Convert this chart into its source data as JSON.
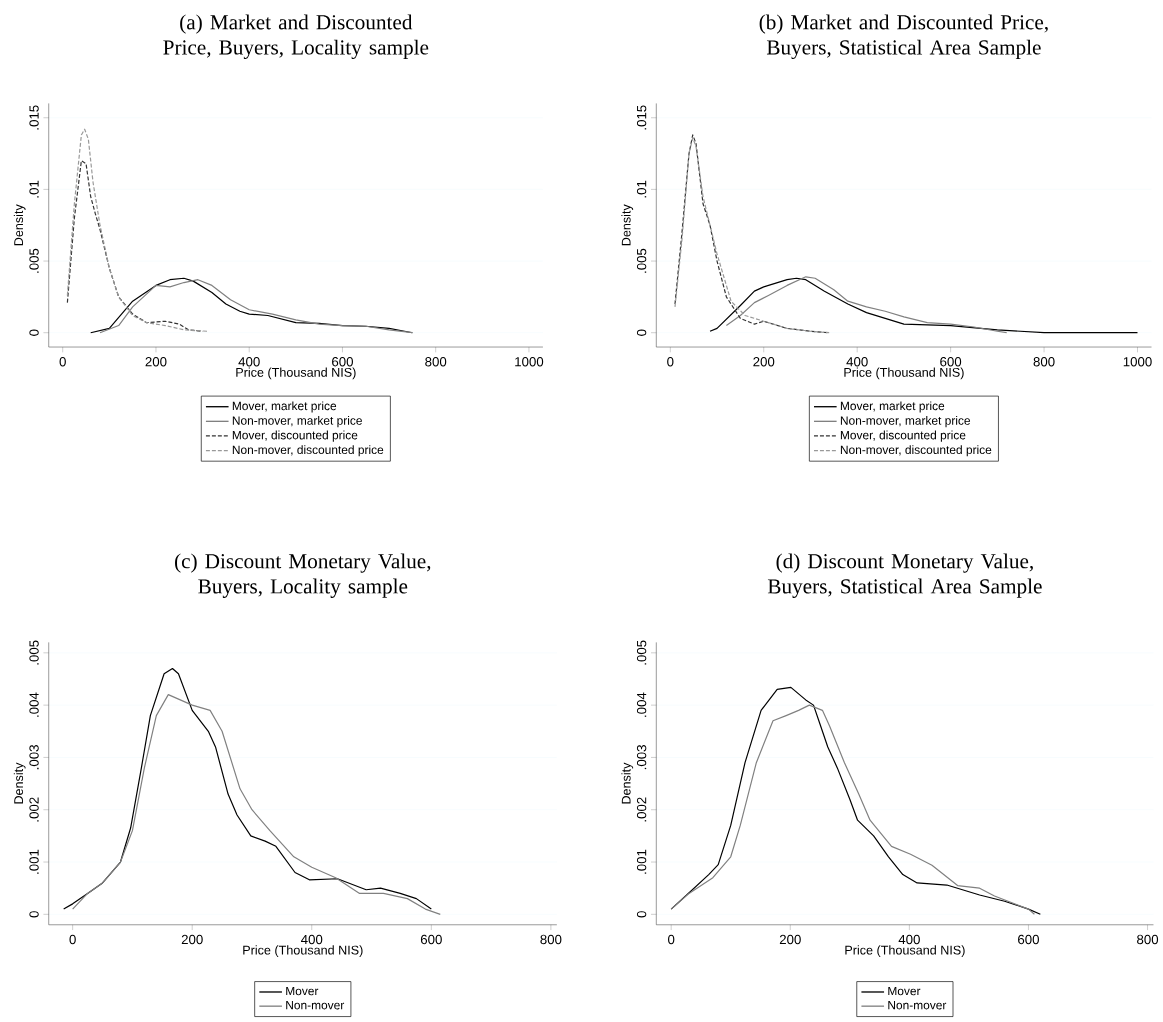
{
  "chart_data": [
    {
      "type": "line",
      "title": "(a) Market and Discounted Price, Buyers, Locality sample",
      "xlabel": "Price (Thousand NIS)",
      "ylabel": "Density",
      "xlim": [
        -30,
        1030
      ],
      "ylim": [
        -0.001,
        0.016
      ],
      "xticks": [
        0,
        200,
        400,
        600,
        800,
        1000
      ],
      "yticks": [
        0,
        {
          "value": 0.005,
          "label": ".005"
        },
        {
          "value": 0.01,
          "label": ".01"
        },
        {
          "value": 0.015,
          "label": ".015"
        }
      ],
      "grid": "y",
      "legend": "bottom",
      "series": [
        {
          "name": "Mover, market price",
          "color": "#000000",
          "line_style": "solid",
          "x": [
            60,
            100,
            150,
            200,
            230,
            260,
            280,
            320,
            350,
            380,
            400,
            440,
            500,
            550,
            600,
            650,
            700,
            750
          ],
          "values": [
            0,
            0.0003,
            0.0022,
            0.0033,
            0.0037,
            0.0038,
            0.0036,
            0.0028,
            0.002,
            0.0015,
            0.0013,
            0.0012,
            0.0007,
            0.00065,
            0.0005,
            0.00045,
            0.0003,
            0
          ]
        },
        {
          "name": "Non-mover, market price",
          "color": "#808080",
          "line_style": "solid",
          "x": [
            80,
            120,
            150,
            200,
            230,
            260,
            290,
            320,
            360,
            400,
            450,
            500,
            550,
            600,
            650,
            700,
            750
          ],
          "values": [
            0,
            0.0005,
            0.0018,
            0.0033,
            0.0032,
            0.0035,
            0.0037,
            0.0033,
            0.0023,
            0.0016,
            0.0013,
            0.0009,
            0.0006,
            0.0005,
            0.00045,
            0.0002,
            0
          ]
        },
        {
          "name": "Mover, discounted price",
          "color": "#333333",
          "line_style": "dashed",
          "x": [
            10,
            25,
            40,
            50,
            60,
            70,
            80,
            100,
            120,
            150,
            180,
            220,
            250,
            270,
            300
          ],
          "values": [
            0.0021,
            0.008,
            0.012,
            0.0118,
            0.0095,
            0.0083,
            0.0072,
            0.0045,
            0.0025,
            0.0013,
            0.0007,
            0.0008,
            0.0006,
            0.0002,
            0.0001
          ]
        },
        {
          "name": "Non-mover, discounted price",
          "color": "#999999",
          "line_style": "dashed",
          "x": [
            10,
            25,
            40,
            47,
            55,
            65,
            80,
            100,
            120,
            150,
            180,
            220,
            260,
            310
          ],
          "values": [
            0.0026,
            0.009,
            0.0138,
            0.0142,
            0.0135,
            0.0105,
            0.0075,
            0.0045,
            0.0025,
            0.0012,
            0.0007,
            0.0005,
            0.0002,
            0.0001
          ]
        }
      ]
    },
    {
      "type": "line",
      "title": "(b) Market and Discounted Price, Buyers, Statistical Area Sample",
      "xlabel": "Price (Thousand NIS)",
      "ylabel": "Density",
      "xlim": [
        -30,
        1030
      ],
      "ylim": [
        -0.001,
        0.016
      ],
      "xticks": [
        0,
        200,
        400,
        600,
        800,
        1000
      ],
      "yticks": [
        0,
        {
          "value": 0.005,
          "label": ".005"
        },
        {
          "value": 0.01,
          "label": ".01"
        },
        {
          "value": 0.015,
          "label": ".015"
        }
      ],
      "grid": "y",
      "legend": "bottom",
      "series": [
        {
          "name": "Mover, market price",
          "color": "#000000",
          "line_style": "solid",
          "x": [
            85,
            100,
            150,
            180,
            200,
            250,
            270,
            290,
            330,
            380,
            420,
            460,
            500,
            600,
            700,
            800,
            900,
            1000
          ],
          "values": [
            0.0001,
            0.0003,
            0.0019,
            0.0029,
            0.0032,
            0.0037,
            0.0038,
            0.0037,
            0.0029,
            0.002,
            0.0014,
            0.001,
            0.0006,
            0.0005,
            0.0002,
            0,
            0,
            0
          ]
        },
        {
          "name": "Non-mover, market price",
          "color": "#808080",
          "line_style": "solid",
          "x": [
            120,
            150,
            180,
            210,
            250,
            290,
            310,
            350,
            380,
            420,
            460,
            500,
            550,
            600,
            650,
            700,
            720
          ],
          "values": [
            0.0005,
            0.0012,
            0.0021,
            0.0026,
            0.0033,
            0.0039,
            0.0038,
            0.003,
            0.0022,
            0.0018,
            0.0015,
            0.0011,
            0.0007,
            0.0006,
            0.0004,
            0.0001,
            0
          ]
        },
        {
          "name": "Mover, discounted price",
          "color": "#333333",
          "line_style": "dashed",
          "x": [
            10,
            25,
            40,
            48,
            55,
            70,
            85,
            100,
            120,
            150,
            180,
            200,
            250,
            300,
            340
          ],
          "values": [
            0.002,
            0.007,
            0.0125,
            0.0138,
            0.0132,
            0.009,
            0.0075,
            0.005,
            0.0025,
            0.001,
            0.0006,
            0.0008,
            0.0003,
            0.0001,
            0
          ]
        },
        {
          "name": "Non-mover, discounted price",
          "color": "#999999",
          "line_style": "dashed",
          "x": [
            10,
            25,
            40,
            48,
            55,
            70,
            85,
            100,
            130,
            160,
            200,
            250,
            300,
            340
          ],
          "values": [
            0.0018,
            0.0065,
            0.0125,
            0.0136,
            0.013,
            0.0095,
            0.0075,
            0.0055,
            0.0022,
            0.0012,
            0.0008,
            0.0003,
            0.0001,
            0
          ]
        }
      ]
    },
    {
      "type": "line",
      "title": "(c) Discount Monetary Value, Buyers, Locality sample",
      "xlabel": "Price (Thousand NIS)",
      "ylabel": "Density",
      "xlim": [
        -40,
        810
      ],
      "ylim": [
        -0.0002,
        0.0052
      ],
      "xticks": [
        0,
        200,
        400,
        600,
        800
      ],
      "yticks": [
        0,
        {
          "value": 0.001,
          "label": ".001"
        },
        {
          "value": 0.002,
          "label": ".002"
        },
        {
          "value": 0.003,
          "label": ".003"
        },
        {
          "value": 0.004,
          "label": ".004"
        },
        {
          "value": 0.005,
          "label": ".005"
        }
      ],
      "grid": "y",
      "legend": "bottom",
      "series": [
        {
          "name": "Mover",
          "color": "#000000",
          "line_style": "solid",
          "x": [
            -15,
            0,
            25,
            50,
            80,
            97,
            115,
            130,
            153,
            167,
            177,
            200,
            227,
            239,
            260,
            275,
            298,
            322,
            340,
            372,
            396,
            443,
            491,
            515,
            548,
            575,
            600
          ],
          "values": [
            0.0001,
            0.0002,
            0.0004,
            0.0006,
            0.001,
            0.00165,
            0.0028,
            0.0038,
            0.0046,
            0.0047,
            0.0046,
            0.0039,
            0.0035,
            0.0032,
            0.0023,
            0.0019,
            0.0015,
            0.0014,
            0.0013,
            0.0008,
            0.00066,
            0.00068,
            0.00047,
            0.0005,
            0.0004,
            0.0003,
            0.0001
          ]
        },
        {
          "name": "Non-mover",
          "color": "#808080",
          "line_style": "solid",
          "x": [
            0,
            25,
            50,
            80,
            100,
            120,
            140,
            160,
            180,
            200,
            230,
            250,
            280,
            300,
            330,
            370,
            400,
            440,
            480,
            520,
            560,
            590,
            615
          ],
          "values": [
            0.0001,
            0.0004,
            0.0006,
            0.001,
            0.0016,
            0.0028,
            0.0038,
            0.0042,
            0.0041,
            0.004,
            0.0039,
            0.0035,
            0.0024,
            0.002,
            0.0016,
            0.0011,
            0.0009,
            0.0007,
            0.0004,
            0.0004,
            0.0003,
            0.0001,
            0
          ]
        }
      ]
    },
    {
      "type": "line",
      "title": "(d) Discount Monetary Value, Buyers, Statistical Area Sample",
      "xlabel": "Price (Thousand NIS)",
      "ylabel": "Density",
      "xlim": [
        -25,
        810
      ],
      "ylim": [
        -0.0002,
        0.0052
      ],
      "xticks": [
        0,
        200,
        400,
        600,
        800
      ],
      "yticks": [
        0,
        {
          "value": 0.001,
          "label": ".001"
        },
        {
          "value": 0.002,
          "label": ".002"
        },
        {
          "value": 0.003,
          "label": ".003"
        },
        {
          "value": 0.004,
          "label": ".004"
        },
        {
          "value": 0.005,
          "label": ".005"
        }
      ],
      "grid": "y",
      "legend": "bottom",
      "series": [
        {
          "name": "Mover",
          "color": "#000000",
          "line_style": "solid",
          "x": [
            0,
            26,
            63,
            79,
            100,
            124,
            151,
            178,
            201,
            226,
            239,
            251,
            263,
            279,
            300,
            313,
            340,
            365,
            389,
            413,
            463,
            518,
            560,
            600,
            620
          ],
          "values": [
            0.0001,
            0.00037,
            0.00076,
            0.00095,
            0.0017,
            0.0029,
            0.0039,
            0.0043,
            0.00434,
            0.0041,
            0.004,
            0.0036,
            0.0032,
            0.0028,
            0.0022,
            0.0018,
            0.0015,
            0.0011,
            0.00076,
            0.0006,
            0.00056,
            0.00037,
            0.00025,
            0.0001,
            0
          ]
        },
        {
          "name": "Non-mover",
          "color": "#808080",
          "line_style": "solid",
          "x": [
            0,
            30,
            70,
            100,
            116,
            143,
            171,
            193,
            214,
            232,
            254,
            266,
            291,
            315,
            334,
            370,
            402,
            438,
            481,
            518,
            543,
            600,
            610
          ],
          "values": [
            0.0001,
            0.0004,
            0.0007,
            0.0011,
            0.0017,
            0.0029,
            0.0037,
            0.0038,
            0.0039,
            0.004,
            0.0039,
            0.0036,
            0.0029,
            0.0023,
            0.0018,
            0.0013,
            0.00115,
            0.00094,
            0.00055,
            0.0005,
            0.00035,
            0.0001,
            0
          ]
        }
      ]
    }
  ]
}
